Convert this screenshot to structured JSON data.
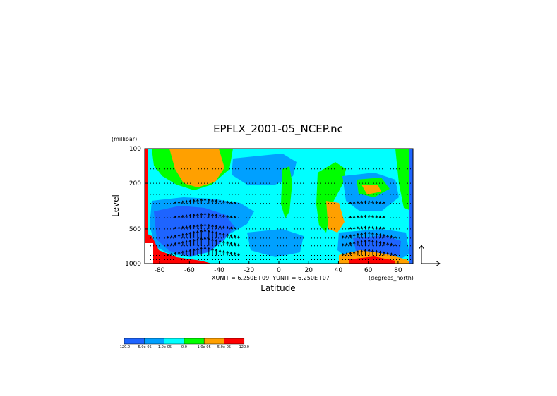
{
  "chart_data": {
    "type": "heatmap",
    "title": "EPFLX_2001-05_NCEP.nc",
    "xlabel": "Latitude",
    "ylabel": "Level",
    "y_units": "(millibar)",
    "x_units": "(degrees_north)",
    "unit_note": "XUNIT = 6.250E+09, YUNIT = 6.250E+07",
    "xlim": [
      -90,
      90
    ],
    "ylim": [
      1000,
      100
    ],
    "y_scale": "log",
    "x_ticks": [
      -80,
      -60,
      -40,
      -20,
      0,
      20,
      40,
      60,
      80
    ],
    "y_ticks": [
      100,
      200,
      500,
      1000
    ],
    "x_tick_labels": [
      "-80",
      "-60",
      "-40",
      "-20",
      "0",
      "20",
      "40",
      "60",
      "80"
    ],
    "y_tick_labels": [
      "100",
      "200",
      "500",
      "1000"
    ],
    "levels_dotted": [
      150,
      200,
      250,
      300,
      400,
      500,
      600,
      700,
      850,
      925
    ],
    "colorbar": {
      "colors": [
        "#1e64ff",
        "#00a0ff",
        "#00ffff",
        "#00ff00",
        "#ffa000",
        "#ff0000"
      ],
      "labels": [
        "-120.0",
        "-5.0e-05",
        "-1.0e-05",
        "0.0",
        "1.0e-05",
        "5.0e-05",
        "120.0"
      ]
    },
    "vector_key": "arrows"
  }
}
